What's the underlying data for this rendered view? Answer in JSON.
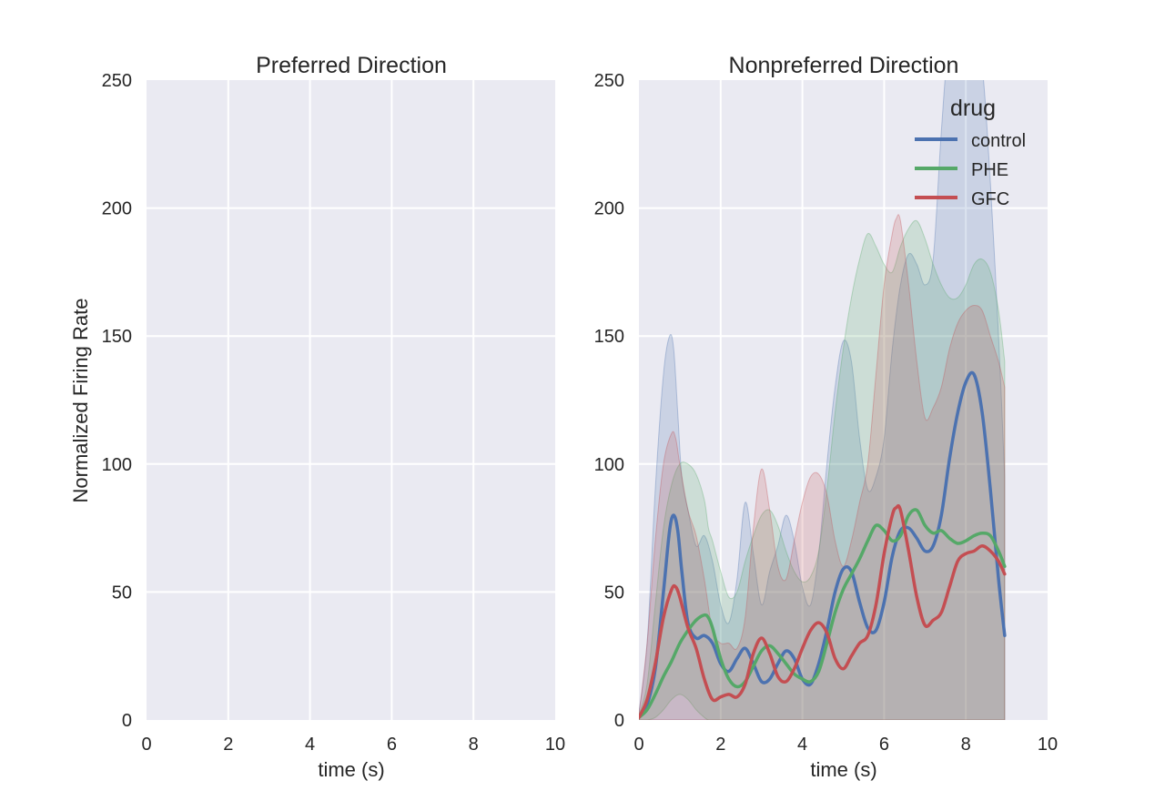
{
  "figure": {
    "ylabel": "Normalized Firing Rate"
  },
  "panels": [
    {
      "title": "Preferred Direction",
      "xlabel": "time (s)",
      "xlim": [
        0,
        10
      ],
      "ylim": [
        0,
        250
      ],
      "xticks": [
        0,
        2,
        4,
        6,
        8,
        10
      ],
      "yticks": [
        0,
        50,
        100,
        150,
        200,
        250
      ]
    },
    {
      "title": "Nonpreferred Direction",
      "xlabel": "time (s)",
      "xlim": [
        0,
        10
      ],
      "ylim": [
        0,
        250
      ],
      "xticks": [
        0,
        2,
        4,
        6,
        8,
        10
      ],
      "yticks": [
        0,
        50,
        100,
        150,
        200,
        250
      ]
    }
  ],
  "legend": {
    "title": "drug",
    "placement": "top-right",
    "entries": [
      "control",
      "PHE",
      "GFC"
    ]
  },
  "colors": {
    "background": "#eaeaf2",
    "grid": "#ffffff",
    "control": "#4c72b0",
    "PHE": "#55a868",
    "GFC": "#c44e52"
  },
  "chart_data": [
    {
      "type": "line",
      "title": "Preferred Direction",
      "xlabel": "time (s)",
      "ylabel": "Normalized Firing Rate",
      "xlim": [
        0,
        10
      ],
      "ylim": [
        0,
        250
      ],
      "grid": true,
      "series": []
    },
    {
      "type": "line",
      "title": "Nonpreferred Direction",
      "xlabel": "time (s)",
      "ylabel": "",
      "xlim": [
        0,
        10
      ],
      "ylim": [
        0,
        250
      ],
      "grid": true,
      "legend_title": "drug",
      "legend_placement": "top-right",
      "series": [
        {
          "name": "control",
          "color": "#4c72b0",
          "x": [
            0,
            0.2,
            0.4,
            0.6,
            0.75,
            0.85,
            0.95,
            1.05,
            1.2,
            1.4,
            1.6,
            1.8,
            2.0,
            2.2,
            2.4,
            2.6,
            2.8,
            3.0,
            3.2,
            3.4,
            3.6,
            3.8,
            4.0,
            4.2,
            4.4,
            4.6,
            4.8,
            5.0,
            5.2,
            5.4,
            5.6,
            5.8,
            6.0,
            6.2,
            6.4,
            6.6,
            6.8,
            7.0,
            7.2,
            7.4,
            7.6,
            7.8,
            8.0,
            8.2,
            8.4,
            8.6,
            8.8,
            8.95
          ],
          "y": [
            1,
            6,
            20,
            50,
            74,
            80,
            74,
            58,
            38,
            32,
            33,
            30,
            22,
            19,
            24,
            28,
            22,
            15,
            16,
            22,
            27,
            24,
            16,
            14,
            22,
            35,
            50,
            59,
            58,
            46,
            36,
            35,
            46,
            64,
            74,
            75,
            71,
            66,
            68,
            80,
            102,
            120,
            132,
            135,
            120,
            90,
            55,
            33
          ],
          "upper": [
            3,
            30,
            90,
            135,
            150,
            145,
            120,
            95,
            82,
            68,
            72,
            62,
            45,
            38,
            55,
            85,
            65,
            45,
            58,
            68,
            80,
            70,
            52,
            45,
            65,
            100,
            130,
            148,
            140,
            110,
            90,
            95,
            110,
            145,
            170,
            182,
            178,
            170,
            180,
            230,
            270,
            280,
            270,
            260,
            255,
            210,
            150,
            95
          ],
          "lower": [
            0,
            0,
            0,
            0,
            0,
            0,
            0,
            0,
            0,
            0,
            0,
            0,
            0,
            0,
            0,
            0,
            0,
            0,
            0,
            0,
            0,
            0,
            0,
            0,
            0,
            0,
            0,
            0,
            0,
            0,
            0,
            0,
            0,
            0,
            0,
            0,
            0,
            0,
            0,
            0,
            0,
            0,
            0,
            0,
            0,
            0,
            0,
            0
          ]
        },
        {
          "name": "PHE",
          "color": "#55a868",
          "x": [
            0,
            0.2,
            0.4,
            0.6,
            0.8,
            1.0,
            1.2,
            1.4,
            1.6,
            1.7,
            1.8,
            2.0,
            2.2,
            2.4,
            2.6,
            2.8,
            3.0,
            3.2,
            3.4,
            3.6,
            3.8,
            4.0,
            4.2,
            4.4,
            4.6,
            4.8,
            5.0,
            5.2,
            5.4,
            5.6,
            5.8,
            6.0,
            6.2,
            6.4,
            6.6,
            6.8,
            7.0,
            7.2,
            7.4,
            7.6,
            7.8,
            8.0,
            8.2,
            8.4,
            8.6,
            8.8,
            8.95
          ],
          "y": [
            1,
            4,
            10,
            17,
            23,
            30,
            35,
            39,
            41,
            40,
            36,
            24,
            16,
            13,
            15,
            21,
            27,
            29,
            26,
            22,
            18,
            16,
            15,
            19,
            30,
            42,
            51,
            57,
            63,
            70,
            76,
            74,
            70,
            72,
            80,
            82,
            76,
            73,
            74,
            71,
            69,
            70,
            72,
            73,
            72,
            66,
            60
          ],
          "upper": [
            2,
            14,
            45,
            75,
            92,
            100,
            100,
            96,
            86,
            75,
            70,
            58,
            48,
            50,
            62,
            72,
            80,
            82,
            76,
            66,
            58,
            54,
            56,
            66,
            90,
            120,
            145,
            165,
            180,
            190,
            185,
            178,
            175,
            185,
            192,
            195,
            188,
            178,
            170,
            165,
            165,
            170,
            178,
            180,
            175,
            160,
            140
          ],
          "lower": [
            0,
            0,
            1,
            4,
            8,
            10,
            8,
            4,
            1,
            0,
            0,
            0,
            0,
            0,
            0,
            0,
            0,
            0,
            0,
            0,
            0,
            0,
            0,
            0,
            0,
            0,
            0,
            0,
            0,
            0,
            0,
            0,
            0,
            0,
            0,
            0,
            0,
            0,
            0,
            0,
            0,
            0,
            0,
            0,
            0,
            0,
            0
          ]
        },
        {
          "name": "GFC",
          "color": "#c44e52",
          "x": [
            0,
            0.2,
            0.4,
            0.6,
            0.8,
            0.9,
            1.0,
            1.2,
            1.4,
            1.6,
            1.8,
            2.0,
            2.2,
            2.4,
            2.6,
            2.8,
            3.0,
            3.2,
            3.4,
            3.6,
            3.8,
            4.0,
            4.2,
            4.4,
            4.6,
            4.8,
            5.0,
            5.2,
            5.4,
            5.6,
            5.8,
            6.0,
            6.2,
            6.3,
            6.4,
            6.6,
            6.8,
            7.0,
            7.2,
            7.4,
            7.6,
            7.8,
            8.0,
            8.2,
            8.4,
            8.6,
            8.8,
            8.95
          ],
          "y": [
            1,
            8,
            22,
            40,
            51,
            52,
            48,
            36,
            28,
            16,
            8,
            9,
            10,
            9,
            14,
            26,
            32,
            26,
            17,
            15,
            20,
            28,
            35,
            38,
            34,
            24,
            20,
            25,
            30,
            33,
            45,
            65,
            80,
            83,
            82,
            66,
            48,
            37,
            39,
            42,
            52,
            62,
            65,
            66,
            68,
            66,
            62,
            57
          ],
          "upper": [
            2,
            30,
            70,
            100,
            112,
            110,
            100,
            82,
            72,
            55,
            35,
            30,
            30,
            28,
            40,
            75,
            98,
            82,
            60,
            55,
            70,
            85,
            95,
            96,
            88,
            70,
            60,
            70,
            85,
            100,
            135,
            170,
            190,
            196,
            195,
            170,
            140,
            118,
            122,
            130,
            145,
            155,
            160,
            162,
            160,
            150,
            140,
            130
          ],
          "lower": [
            0,
            0,
            0,
            0,
            0,
            0,
            0,
            0,
            0,
            0,
            0,
            0,
            0,
            0,
            0,
            0,
            0,
            0,
            0,
            0,
            0,
            0,
            0,
            0,
            0,
            0,
            0,
            0,
            0,
            0,
            0,
            0,
            0,
            0,
            0,
            0,
            0,
            0,
            0,
            0,
            0,
            0,
            0,
            0,
            0,
            0,
            0,
            0
          ]
        }
      ]
    }
  ]
}
